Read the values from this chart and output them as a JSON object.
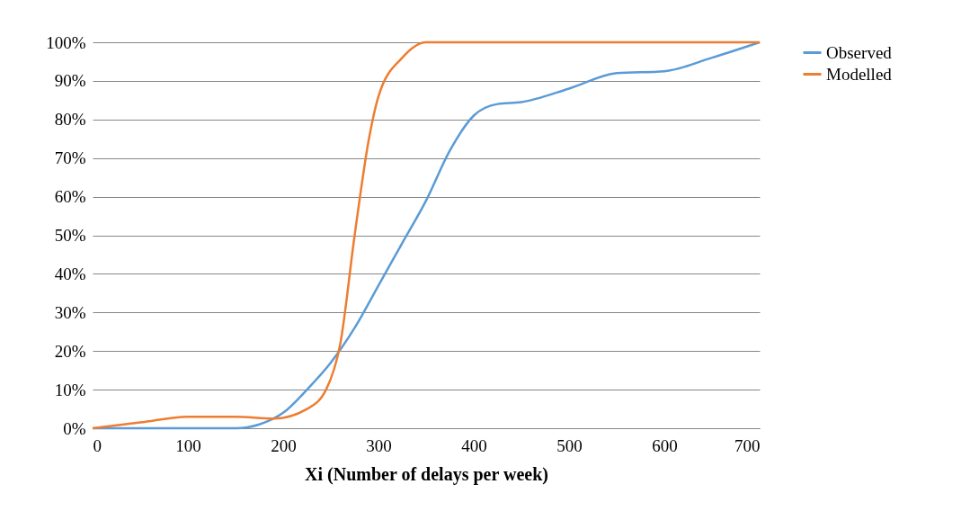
{
  "chart_data": {
    "type": "line",
    "xlabel": "Xi (Number of delays per week)",
    "xlim": [
      0,
      700
    ],
    "xticks": [
      0,
      100,
      200,
      300,
      400,
      500,
      600,
      700
    ],
    "ylim": [
      0,
      100
    ],
    "yticks": [
      {
        "value": 0,
        "label": "0%"
      },
      {
        "value": 10,
        "label": "10%"
      },
      {
        "value": 20,
        "label": "20%"
      },
      {
        "value": 30,
        "label": "30%"
      },
      {
        "value": 40,
        "label": "40%"
      },
      {
        "value": 50,
        "label": "50%"
      },
      {
        "value": 60,
        "label": "60%"
      },
      {
        "value": 70,
        "label": "70%"
      },
      {
        "value": 80,
        "label": "80%"
      },
      {
        "value": 90,
        "label": "90%"
      },
      {
        "value": 100,
        "label": "100%"
      }
    ],
    "grid": "y",
    "legend": "right",
    "marker": "none",
    "line_style": "solid",
    "series": [
      {
        "name": "Observed",
        "color": "#5b9bd5",
        "x": [
          0,
          50,
          100,
          150,
          175,
          200,
          225,
          250,
          275,
          300,
          325,
          350,
          375,
          400,
          425,
          450,
          500,
          550,
          600,
          650,
          700
        ],
        "values": [
          0,
          0,
          0,
          0,
          1,
          4,
          10,
          17,
          26,
          37,
          48,
          59,
          72,
          81,
          84,
          84.5,
          88,
          92,
          92.5,
          96,
          100
        ]
      },
      {
        "name": "Modelled",
        "color": "#ed7d31",
        "x": [
          0,
          50,
          100,
          150,
          190,
          225,
          245,
          260,
          275,
          290,
          300,
          325,
          350,
          400,
          500,
          700
        ],
        "values": [
          0,
          1.5,
          3,
          3,
          2.5,
          5,
          10,
          22,
          50,
          75,
          86,
          96,
          100,
          100,
          100,
          100
        ]
      }
    ]
  }
}
